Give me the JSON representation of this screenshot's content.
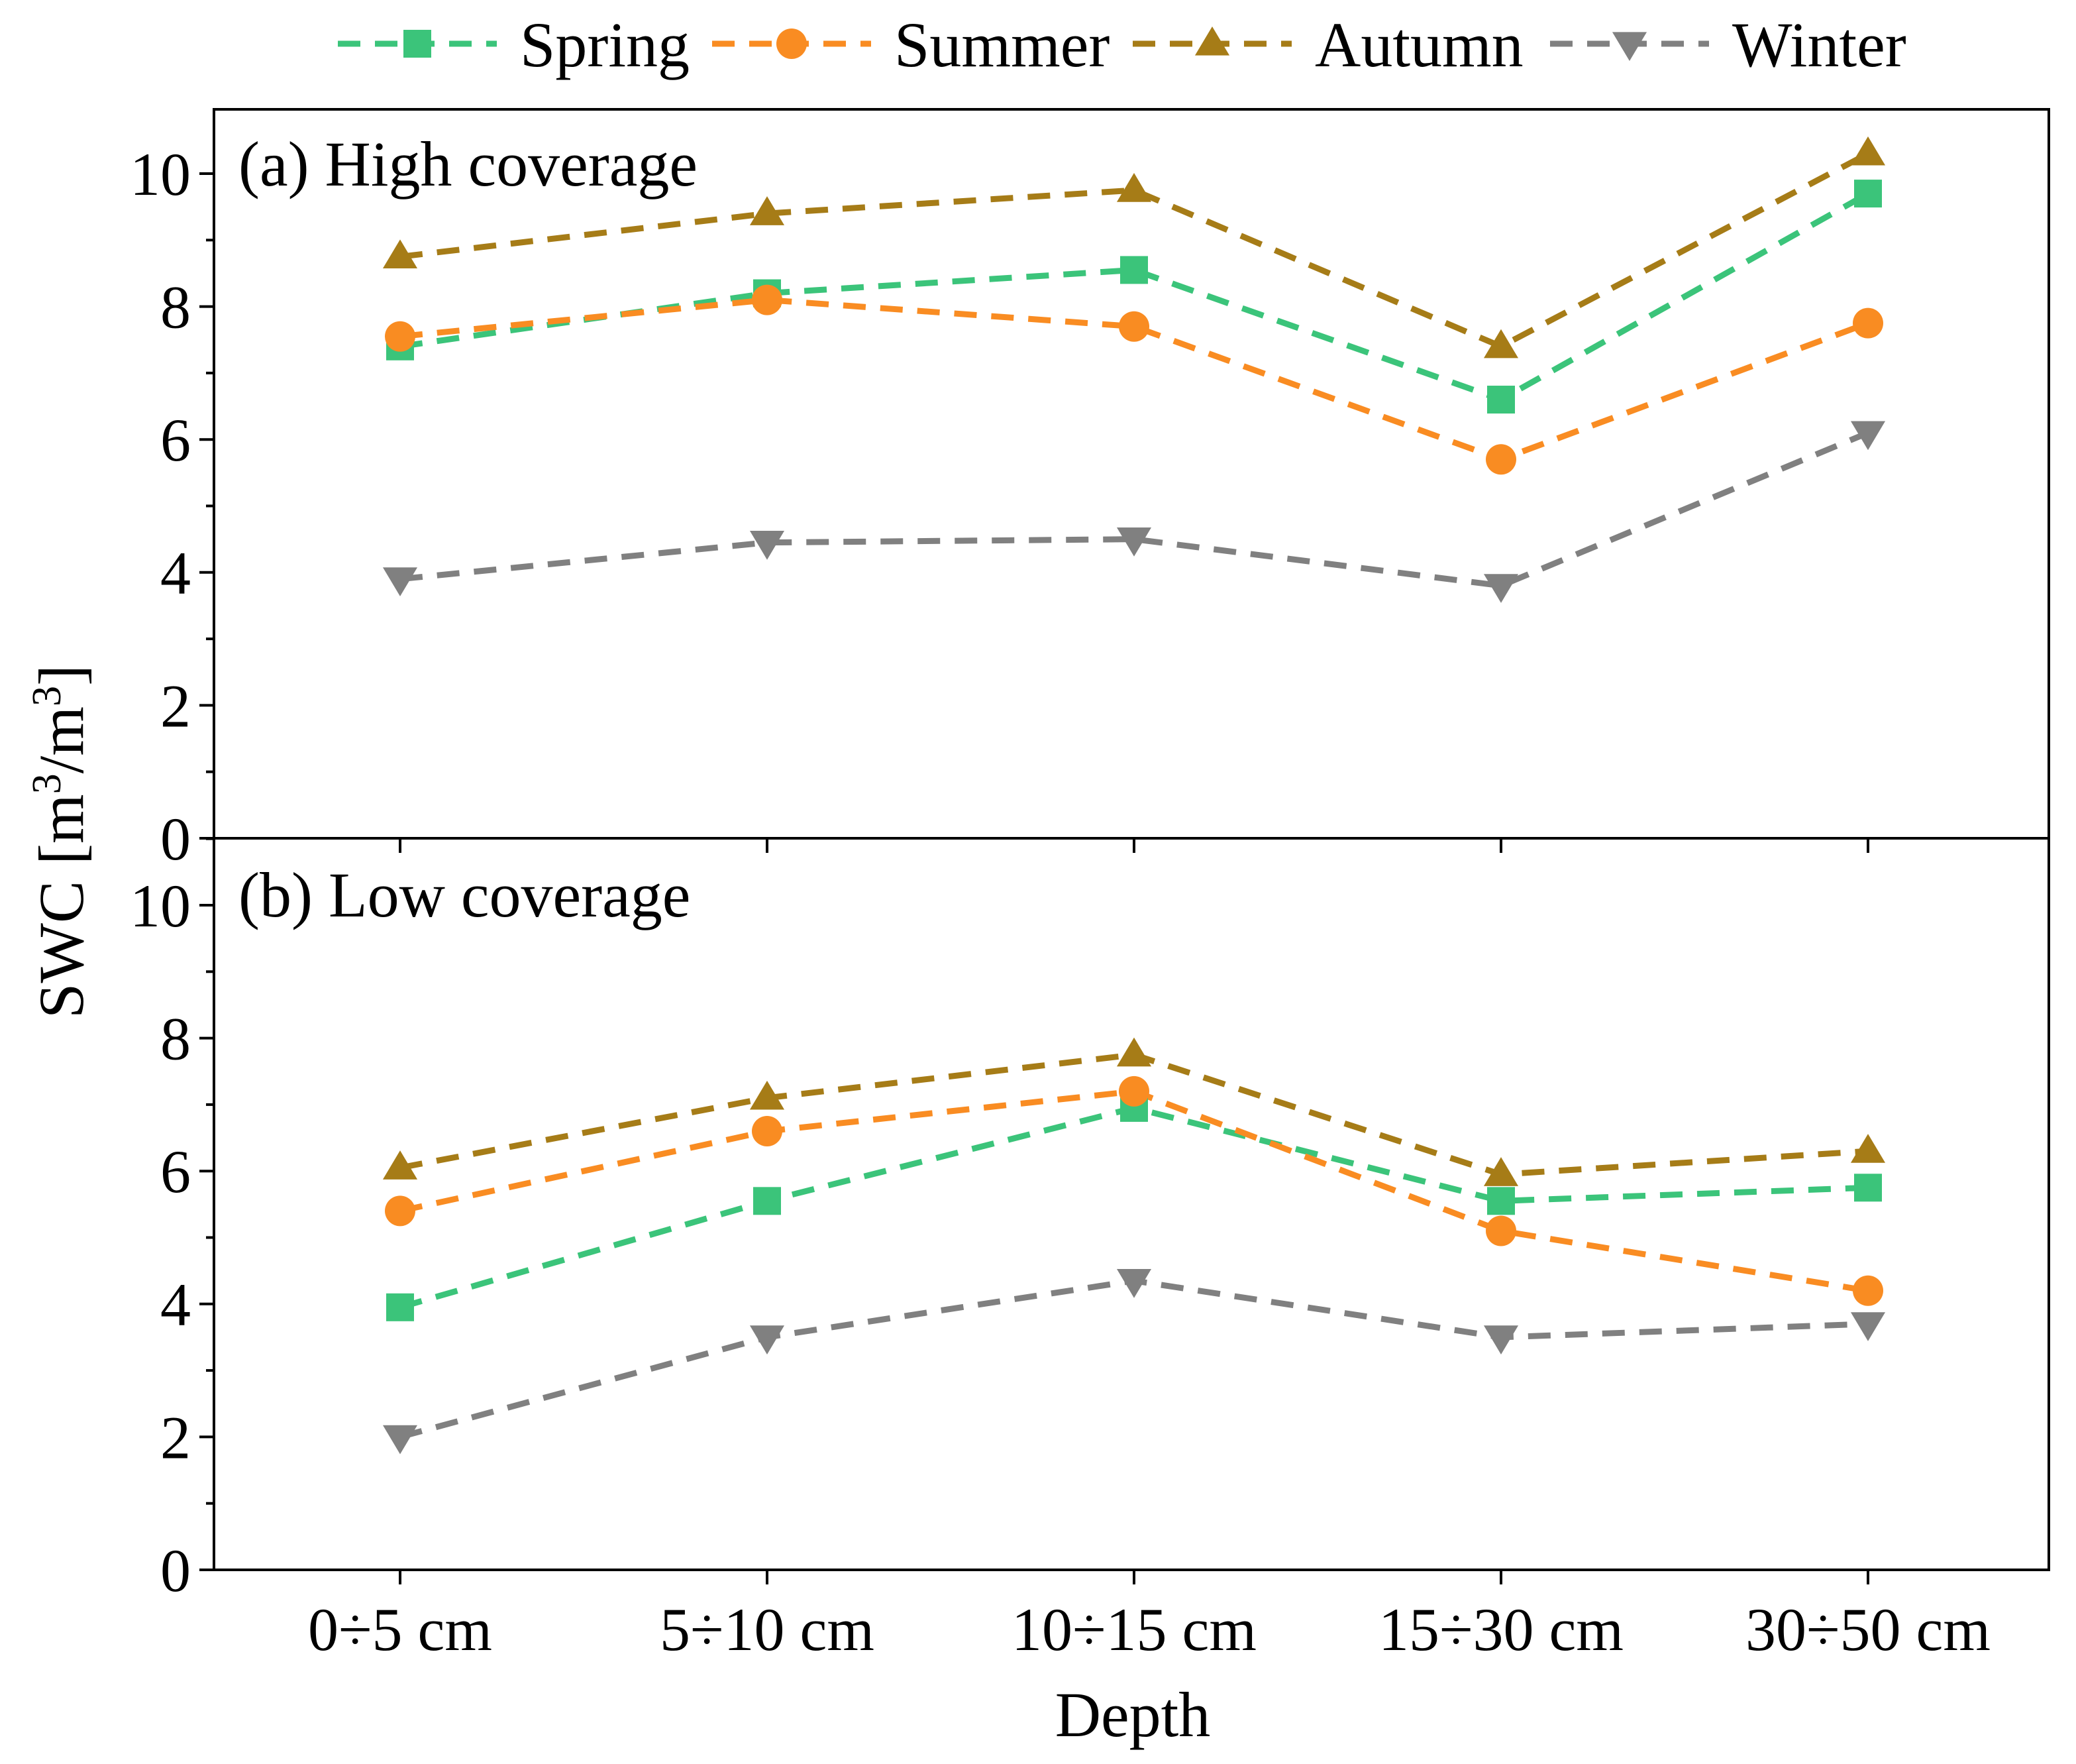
{
  "chart_data": {
    "type": "line",
    "legend_position": "top",
    "xlabel": "Depth",
    "ylabel": "SWC [m³/m³]",
    "ylabel_parts": {
      "lead": "SWC [m",
      "sup1": "3",
      "mid": "/m",
      "sup2": "3",
      "tail": "]"
    },
    "categories": [
      "0÷5 cm",
      "5÷10 cm",
      "10÷15 cm",
      "15÷30 cm",
      "30÷50 cm"
    ],
    "ylim": [
      0,
      11
    ],
    "yticks": [
      0,
      2,
      4,
      6,
      8,
      10
    ],
    "grid": false,
    "series_styles": [
      {
        "name": "Spring",
        "color": "#3bc47a",
        "marker": "square"
      },
      {
        "name": "Summer",
        "color": "#f98c22",
        "marker": "circle"
      },
      {
        "name": "Autumn",
        "color": "#a67c17",
        "marker": "triangle-up"
      },
      {
        "name": "Winter",
        "color": "#808080",
        "marker": "triangle-down"
      }
    ],
    "panels": [
      {
        "title": "(a) High coverage",
        "series": [
          {
            "name": "Spring",
            "values": [
              7.4,
              8.2,
              8.55,
              6.6,
              9.7
            ]
          },
          {
            "name": "Summer",
            "values": [
              7.55,
              8.1,
              7.7,
              5.7,
              7.75
            ]
          },
          {
            "name": "Autumn",
            "values": [
              8.75,
              9.4,
              9.75,
              7.4,
              10.3
            ]
          },
          {
            "name": "Winter",
            "values": [
              3.9,
              4.45,
              4.5,
              3.8,
              6.1
            ]
          }
        ]
      },
      {
        "title": "(b) Low coverage",
        "series": [
          {
            "name": "Spring",
            "values": [
              3.95,
              5.55,
              6.95,
              5.55,
              5.75
            ]
          },
          {
            "name": "Summer",
            "values": [
              5.4,
              6.6,
              7.2,
              5.1,
              4.2
            ]
          },
          {
            "name": "Autumn",
            "values": [
              6.05,
              7.1,
              7.75,
              5.95,
              6.3
            ]
          },
          {
            "name": "Winter",
            "values": [
              2.0,
              3.5,
              4.35,
              3.5,
              3.7
            ]
          }
        ]
      }
    ]
  }
}
